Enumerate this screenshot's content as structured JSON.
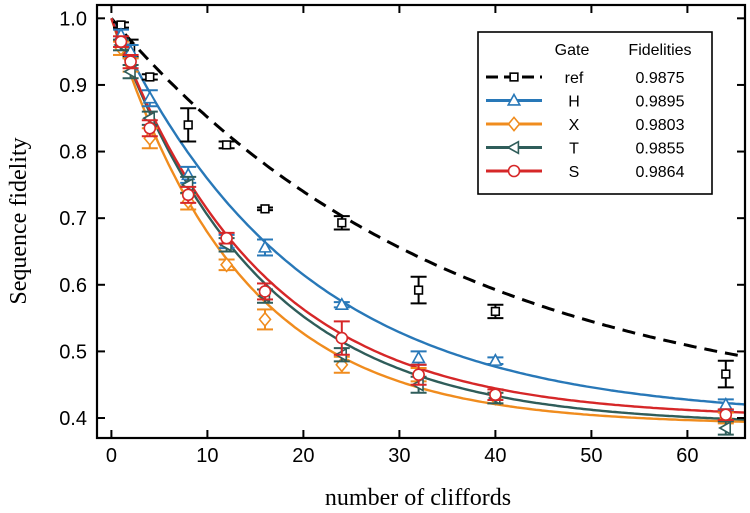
{
  "chart_data": {
    "type": "line",
    "xlabel": "number of cliffords",
    "ylabel": "Sequence fidelity",
    "xlim": [
      -1.5,
      66
    ],
    "ylim": [
      0.37,
      1.02
    ],
    "xticks": [
      0,
      10,
      20,
      30,
      40,
      50,
      60
    ],
    "yticks": [
      0.4,
      0.5,
      0.6,
      0.7,
      0.8,
      0.9,
      1.0
    ],
    "ytick_labels": [
      "0.4",
      "0.5",
      "0.6",
      "0.7",
      "0.8",
      "0.9",
      "1.0"
    ],
    "grid": false,
    "legend": {
      "placement": "top-right",
      "header_gate": "Gate",
      "header_fidelity": "Fidelities"
    },
    "series": [
      {
        "name": "ref",
        "fidelity": "0.9875",
        "color": "#000000",
        "marker": "square",
        "line_style": "dashed",
        "fit": {
          "A": 0.6,
          "p": 0.972,
          "B": 0.4
        },
        "points": [
          {
            "x": 1,
            "y": 0.99,
            "err": 0.004
          },
          {
            "x": 2,
            "y": 0.955,
            "err": 0.013
          },
          {
            "x": 4,
            "y": 0.912,
            "err": 0.004
          },
          {
            "x": 8,
            "y": 0.84,
            "err": 0.025
          },
          {
            "x": 12,
            "y": 0.81,
            "err": 0.005
          },
          {
            "x": 16,
            "y": 0.714,
            "err": 0.002
          },
          {
            "x": 24,
            "y": 0.693,
            "err": 0.01
          },
          {
            "x": 32,
            "y": 0.592,
            "err": 0.02
          },
          {
            "x": 40,
            "y": 0.56,
            "err": 0.01
          },
          {
            "x": 64,
            "y": 0.466,
            "err": 0.02
          }
        ]
      },
      {
        "name": "H",
        "fidelity": "0.9895",
        "color": "#2878b8",
        "marker": "triangle-up",
        "line_style": "solid",
        "fit": {
          "A": 0.6,
          "p": 0.95,
          "B": 0.4
        },
        "points": [
          {
            "x": 1,
            "y": 0.975,
            "err": 0.008
          },
          {
            "x": 2,
            "y": 0.95,
            "err": 0.01
          },
          {
            "x": 4,
            "y": 0.88,
            "err": 0.012
          },
          {
            "x": 8,
            "y": 0.765,
            "err": 0.012
          },
          {
            "x": 12,
            "y": 0.665,
            "err": 0.01
          },
          {
            "x": 16,
            "y": 0.656,
            "err": 0.012
          },
          {
            "x": 24,
            "y": 0.57,
            "err": 0.004
          },
          {
            "x": 32,
            "y": 0.49,
            "err": 0.01
          },
          {
            "x": 40,
            "y": 0.486,
            "err": 0.005
          },
          {
            "x": 64,
            "y": 0.42,
            "err": 0.008
          }
        ]
      },
      {
        "name": "X",
        "fidelity": "0.9803",
        "color": "#f08c1e",
        "marker": "diamond",
        "line_style": "solid",
        "fit": {
          "A": 0.61,
          "p": 0.928,
          "B": 0.39
        },
        "points": [
          {
            "x": 1,
            "y": 0.955,
            "err": 0.01
          },
          {
            "x": 2,
            "y": 0.93,
            "err": 0.01
          },
          {
            "x": 4,
            "y": 0.82,
            "err": 0.015
          },
          {
            "x": 8,
            "y": 0.725,
            "err": 0.012
          },
          {
            "x": 12,
            "y": 0.63,
            "err": 0.008
          },
          {
            "x": 16,
            "y": 0.548,
            "err": 0.015
          },
          {
            "x": 24,
            "y": 0.48,
            "err": 0.012
          },
          {
            "x": 32,
            "y": 0.465,
            "err": 0.01
          },
          {
            "x": 40,
            "y": 0.43,
            "err": 0.008
          },
          {
            "x": 64,
            "y": 0.4,
            "err": 0.008
          }
        ]
      },
      {
        "name": "T",
        "fidelity": "0.9855",
        "color": "#2f5d5a",
        "marker": "triangle-left",
        "line_style": "solid",
        "fit": {
          "A": 0.61,
          "p": 0.936,
          "B": 0.39
        },
        "points": [
          {
            "x": 1,
            "y": 0.96,
            "err": 0.008
          },
          {
            "x": 2,
            "y": 0.92,
            "err": 0.01
          },
          {
            "x": 4,
            "y": 0.85,
            "err": 0.01
          },
          {
            "x": 8,
            "y": 0.75,
            "err": 0.012
          },
          {
            "x": 12,
            "y": 0.66,
            "err": 0.01
          },
          {
            "x": 16,
            "y": 0.583,
            "err": 0.01
          },
          {
            "x": 24,
            "y": 0.495,
            "err": 0.01
          },
          {
            "x": 32,
            "y": 0.45,
            "err": 0.012
          },
          {
            "x": 40,
            "y": 0.43,
            "err": 0.008
          },
          {
            "x": 64,
            "y": 0.385,
            "err": 0.01
          }
        ]
      },
      {
        "name": "S",
        "fidelity": "0.9864",
        "color": "#d62728",
        "marker": "circle",
        "line_style": "solid",
        "fit": {
          "A": 0.6,
          "p": 0.937,
          "B": 0.4
        },
        "points": [
          {
            "x": 1,
            "y": 0.965,
            "err": 0.008
          },
          {
            "x": 2,
            "y": 0.935,
            "err": 0.01
          },
          {
            "x": 4,
            "y": 0.835,
            "err": 0.012
          },
          {
            "x": 8,
            "y": 0.735,
            "err": 0.012
          },
          {
            "x": 12,
            "y": 0.67,
            "err": 0.008
          },
          {
            "x": 16,
            "y": 0.59,
            "err": 0.012
          },
          {
            "x": 24,
            "y": 0.52,
            "err": 0.025
          },
          {
            "x": 32,
            "y": 0.465,
            "err": 0.015
          },
          {
            "x": 40,
            "y": 0.435,
            "err": 0.008
          },
          {
            "x": 64,
            "y": 0.405,
            "err": 0.008
          }
        ]
      }
    ]
  }
}
